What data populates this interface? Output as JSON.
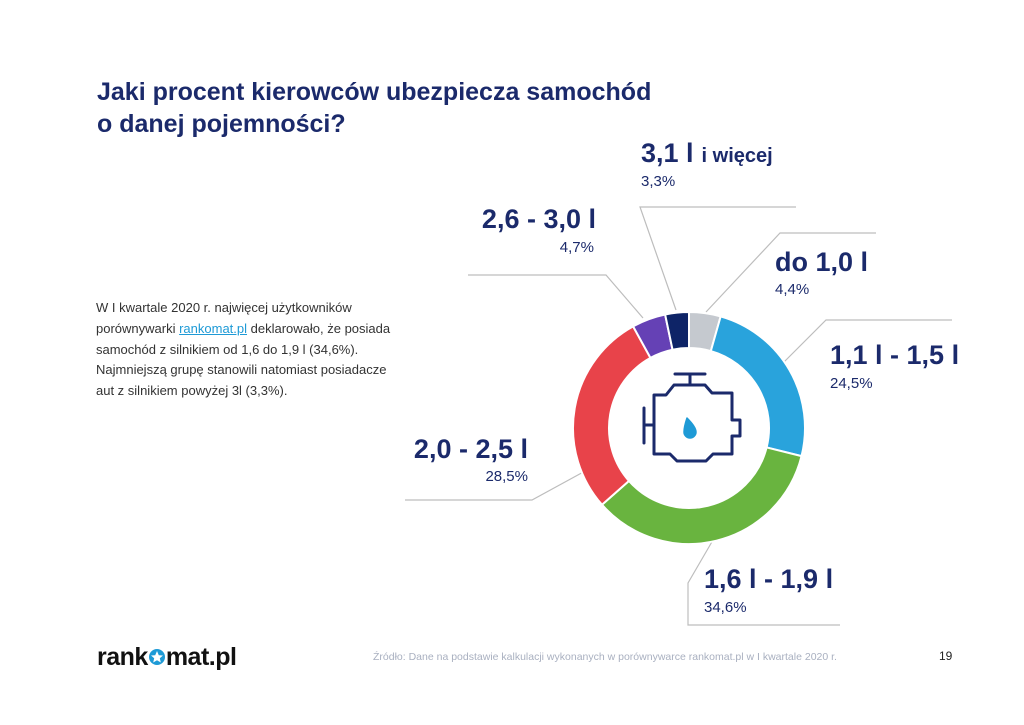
{
  "title": {
    "line1": "Jaki procent kierowców ubezpiecza samochód",
    "line2": "o danej pojemności?"
  },
  "description": {
    "part1": "W I kwartale 2020 r. najwięcej użytkowników porównywarki ",
    "link": "rankomat.pl",
    "part2": " deklarowało, że posiada samochód z silnikiem od 1,6 do 1,9 l (34,6%). Najmniejszą grupę stanowili natomiast posiadacze aut z silnikiem powyżej 3l (3,3%)."
  },
  "chart_data": {
    "type": "pie",
    "donut": true,
    "center_icon": "engine-oil-icon",
    "categories": [
      "do 1,0 l",
      "1,1 l - 1,5 l",
      "1,6 l - 1,9 l",
      "2,0 - 2,5 l",
      "2,6 - 3,0 l",
      "3,1 l i więcej"
    ],
    "values": [
      4.4,
      24.5,
      34.6,
      28.5,
      4.7,
      3.3
    ],
    "value_labels": [
      "4,4%",
      "24,5%",
      "34,6%",
      "28,5%",
      "4,7%",
      "3,3%"
    ],
    "label_parts": [
      [
        "do 1,0 l"
      ],
      [
        "1,1 l - 1,5 l"
      ],
      [
        "1,6 l - 1,9 l"
      ],
      [
        "2,0 - 2,5 l"
      ],
      [
        "2,6 - 3,0 l"
      ],
      [
        "3,1 l",
        "i więcej"
      ]
    ],
    "colors": [
      "#c5c9cf",
      "#29a3dc",
      "#69b43f",
      "#e8434a",
      "#6541b5",
      "#0e2467"
    ]
  },
  "colors": {
    "title": "#1b2a6b",
    "link": "#1e9ad6",
    "leader_line": "#bdbdbd"
  },
  "footer": {
    "logo_left": "rank",
    "logo_right": "mat.pl",
    "source": "Źródło: Dane na podstawie kalkulacji wykonanych w porównywarce rankomat.pl w I kwartale 2020 r.",
    "page_number": "19"
  }
}
